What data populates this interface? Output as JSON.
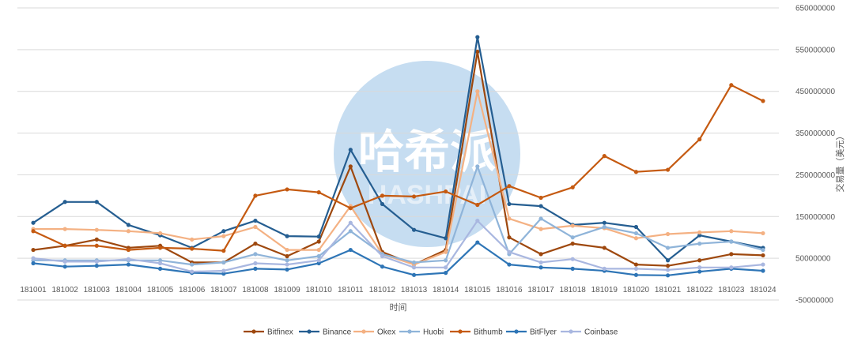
{
  "watermark": {
    "text": "哈希派",
    "sub": "HASHPAI"
  },
  "chart_data": {
    "type": "line",
    "xlabel": "时间",
    "ylabel": "交易量（美元）",
    "ylim": [
      -50000000,
      650000000
    ],
    "y_ticks": [
      -50000000,
      50000000,
      150000000,
      250000000,
      350000000,
      450000000,
      550000000,
      650000000
    ],
    "y_axis_side": "right",
    "grid": true,
    "legend_position": "bottom",
    "categories": [
      "181001",
      "181002",
      "181003",
      "181004",
      "181005",
      "181006",
      "181007",
      "181008",
      "181009",
      "181010",
      "181011",
      "181012",
      "181013",
      "181014",
      "181015",
      "181016",
      "181017",
      "181018",
      "181019",
      "181020",
      "181021",
      "181022",
      "181023",
      "181024"
    ],
    "series": [
      {
        "name": "Bitfinex",
        "color": "#9E480E",
        "values": [
          70000000,
          80000000,
          95000000,
          75000000,
          80000000,
          40000000,
          40000000,
          85000000,
          55000000,
          90000000,
          270000000,
          65000000,
          35000000,
          70000000,
          545000000,
          100000000,
          60000000,
          85000000,
          75000000,
          35000000,
          32000000,
          45000000,
          60000000,
          57000000
        ]
      },
      {
        "name": "Binance",
        "color": "#255E91",
        "values": [
          135000000,
          185000000,
          185000000,
          130000000,
          105000000,
          75000000,
          115000000,
          140000000,
          103000000,
          102000000,
          310000000,
          180000000,
          118000000,
          98000000,
          580000000,
          180000000,
          175000000,
          130000000,
          135000000,
          125000000,
          45000000,
          105000000,
          90000000,
          75000000
        ]
      },
      {
        "name": "Okex",
        "color": "#F4B183",
        "values": [
          120000000,
          120000000,
          118000000,
          115000000,
          110000000,
          95000000,
          103000000,
          125000000,
          70000000,
          70000000,
          175000000,
          60000000,
          35000000,
          65000000,
          450000000,
          145000000,
          120000000,
          128000000,
          122000000,
          98000000,
          108000000,
          112000000,
          115000000,
          110000000
        ]
      },
      {
        "name": "Huobi",
        "color": "#8FB4D9",
        "values": [
          45000000,
          45000000,
          45000000,
          45000000,
          45000000,
          35000000,
          40000000,
          60000000,
          45000000,
          55000000,
          115000000,
          60000000,
          40000000,
          45000000,
          270000000,
          60000000,
          145000000,
          100000000,
          125000000,
          110000000,
          75000000,
          85000000,
          90000000,
          70000000
        ]
      },
      {
        "name": "Bithumb",
        "color": "#C55A11",
        "values": [
          115000000,
          80000000,
          80000000,
          70000000,
          75000000,
          73000000,
          68000000,
          200000000,
          215000000,
          208000000,
          170000000,
          200000000,
          198000000,
          210000000,
          178000000,
          223000000,
          195000000,
          220000000,
          295000000,
          257000000,
          262000000,
          335000000,
          465000000,
          427000000
        ]
      },
      {
        "name": "BitFlyer",
        "color": "#2E75B6",
        "values": [
          38000000,
          30000000,
          32000000,
          35000000,
          25000000,
          15000000,
          13000000,
          25000000,
          23000000,
          38000000,
          70000000,
          30000000,
          10000000,
          15000000,
          88000000,
          35000000,
          28000000,
          25000000,
          20000000,
          10000000,
          9000000,
          18000000,
          25000000,
          20000000
        ]
      },
      {
        "name": "Coinbase",
        "color": "#A9B7E0",
        "values": [
          50000000,
          42000000,
          42000000,
          48000000,
          38000000,
          18000000,
          20000000,
          38000000,
          35000000,
          45000000,
          135000000,
          55000000,
          28000000,
          28000000,
          140000000,
          65000000,
          40000000,
          48000000,
          25000000,
          25000000,
          22000000,
          28000000,
          28000000,
          35000000
        ]
      }
    ]
  }
}
